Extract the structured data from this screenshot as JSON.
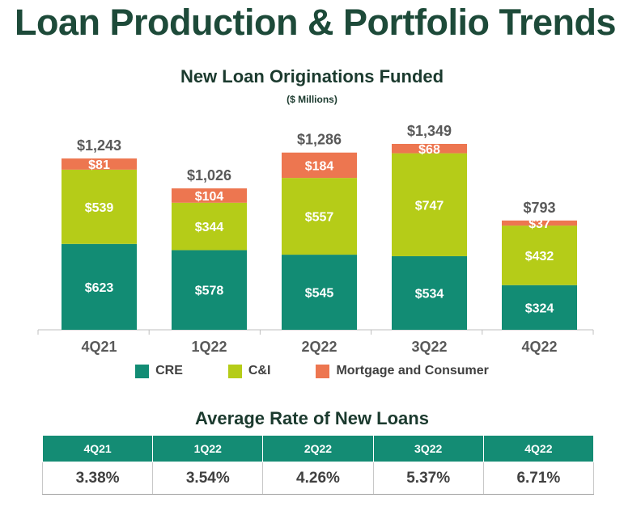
{
  "page": {
    "title": "Loan Production & Portfolio Trends"
  },
  "chart_data": {
    "type": "bar",
    "stacked": true,
    "title": "New Loan Originations Funded",
    "subtitle": "($ Millions)",
    "xlabel": "",
    "ylabel": "",
    "categories": [
      "4Q21",
      "1Q22",
      "2Q22",
      "3Q22",
      "4Q22"
    ],
    "series": [
      {
        "name": "CRE",
        "color": "#128c74",
        "values": [
          623,
          578,
          545,
          534,
          324
        ],
        "labels": [
          "$623",
          "$578",
          "$545",
          "$534",
          "$324"
        ]
      },
      {
        "name": "C&I",
        "color": "#b5cc18",
        "values": [
          539,
          344,
          557,
          747,
          432
        ],
        "labels": [
          "$539",
          "$344",
          "$557",
          "$747",
          "$432"
        ]
      },
      {
        "name": "Mortgage and Consumer",
        "color": "#ed7650",
        "values": [
          81,
          104,
          184,
          68,
          37
        ],
        "labels": [
          "$81",
          "$104",
          "$184",
          "$68",
          "$37"
        ]
      }
    ],
    "totals": [
      1243,
      1026,
      1286,
      1349,
      793
    ],
    "total_labels": [
      "$1,243",
      "$1,026",
      "$1,286",
      "$1,349",
      "$793"
    ],
    "ylim": [
      0,
      1349
    ],
    "grid": false,
    "legend_position": "bottom"
  },
  "rate_table": {
    "title": "Average Rate of New Loans",
    "headers": [
      "4Q21",
      "1Q22",
      "2Q22",
      "3Q22",
      "4Q22"
    ],
    "values": [
      "3.38%",
      "3.54%",
      "4.26%",
      "5.37%",
      "6.71%"
    ],
    "header_color": "#148c74"
  }
}
